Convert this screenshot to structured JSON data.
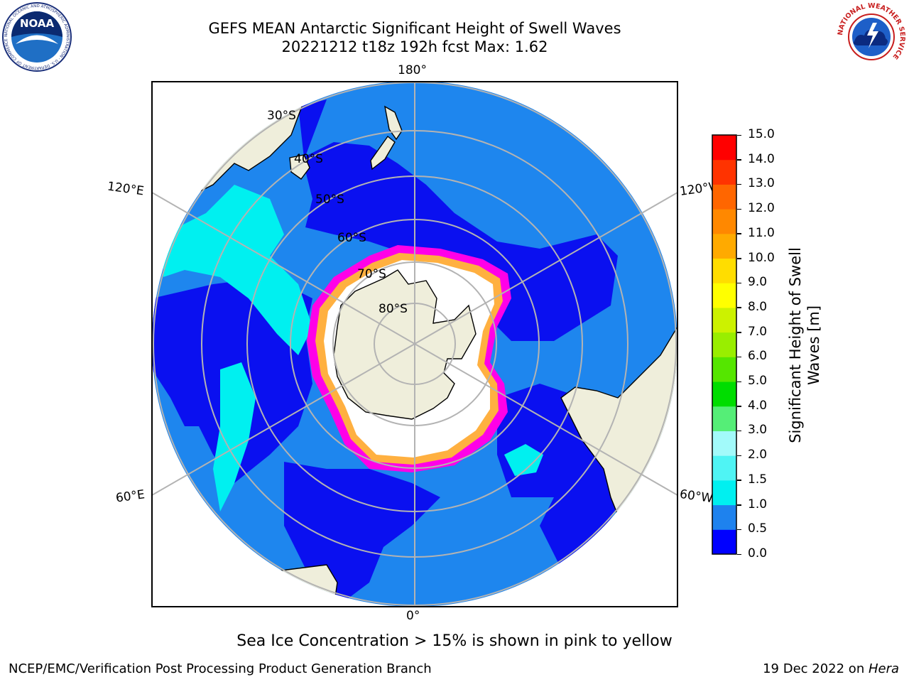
{
  "header": {
    "title_line1": "GEFS MEAN Antarctic Significant Height of Swell Waves",
    "title_line2": "20221212 t18z 192h fcst   Max: 1.62"
  },
  "logos": {
    "left": "NOAA",
    "left_ring": "NATIONAL OCEANIC AND ATMOSPHERIC ADMINISTRATION · U.S. DEPARTMENT OF COMMERCE",
    "right_ring": "NATIONAL WEATHER SERVICE"
  },
  "map": {
    "projection": "south-polar-stereographic",
    "longitude_labels": {
      "top": "180°",
      "bottom": "0°",
      "upper_left": "120°E",
      "lower_left": "60°E",
      "upper_right": "120°W",
      "lower_right": "60°W"
    },
    "latitude_labels": [
      "30°S",
      "40°S",
      "50°S",
      "60°S",
      "70°S",
      "80°S"
    ],
    "colors": {
      "land": "#efeedb",
      "ocean_main": "#1e86ee",
      "ocean_low": "#0a10f0",
      "ocean_swell": "#00f0f0",
      "ice_pink": "#ff00e8",
      "ice_yellow": "#ffb040",
      "grid": "#b3b3b3"
    }
  },
  "colorbar": {
    "title_line1": "Significant Height of Swell",
    "title_line2": "Waves [m]",
    "tick_labels": [
      "0.0",
      "0.5",
      "1.0",
      "1.5",
      "2.0",
      "3.0",
      "4.0",
      "5.0",
      "6.0",
      "7.0",
      "8.0",
      "9.0",
      "10.0",
      "11.0",
      "12.0",
      "13.0",
      "14.0",
      "15.0"
    ],
    "colors": [
      "#0000ff",
      "#1e82ee",
      "#00f0f0",
      "#4ff4f4",
      "#a2fafa",
      "#55ee77",
      "#00dd00",
      "#55e600",
      "#99ee00",
      "#ccf200",
      "#ffff00",
      "#ffdd00",
      "#ffaa00",
      "#ff8800",
      "#ff6600",
      "#ff3300",
      "#ff0000"
    ]
  },
  "caption": "Sea Ice Concentration > 15% is shown in pink to yellow",
  "footer": {
    "left": "NCEP/EMC/Verification Post Processing Product Generation Branch",
    "date": "19 Dec 2022 on ",
    "machine": "Hera"
  }
}
